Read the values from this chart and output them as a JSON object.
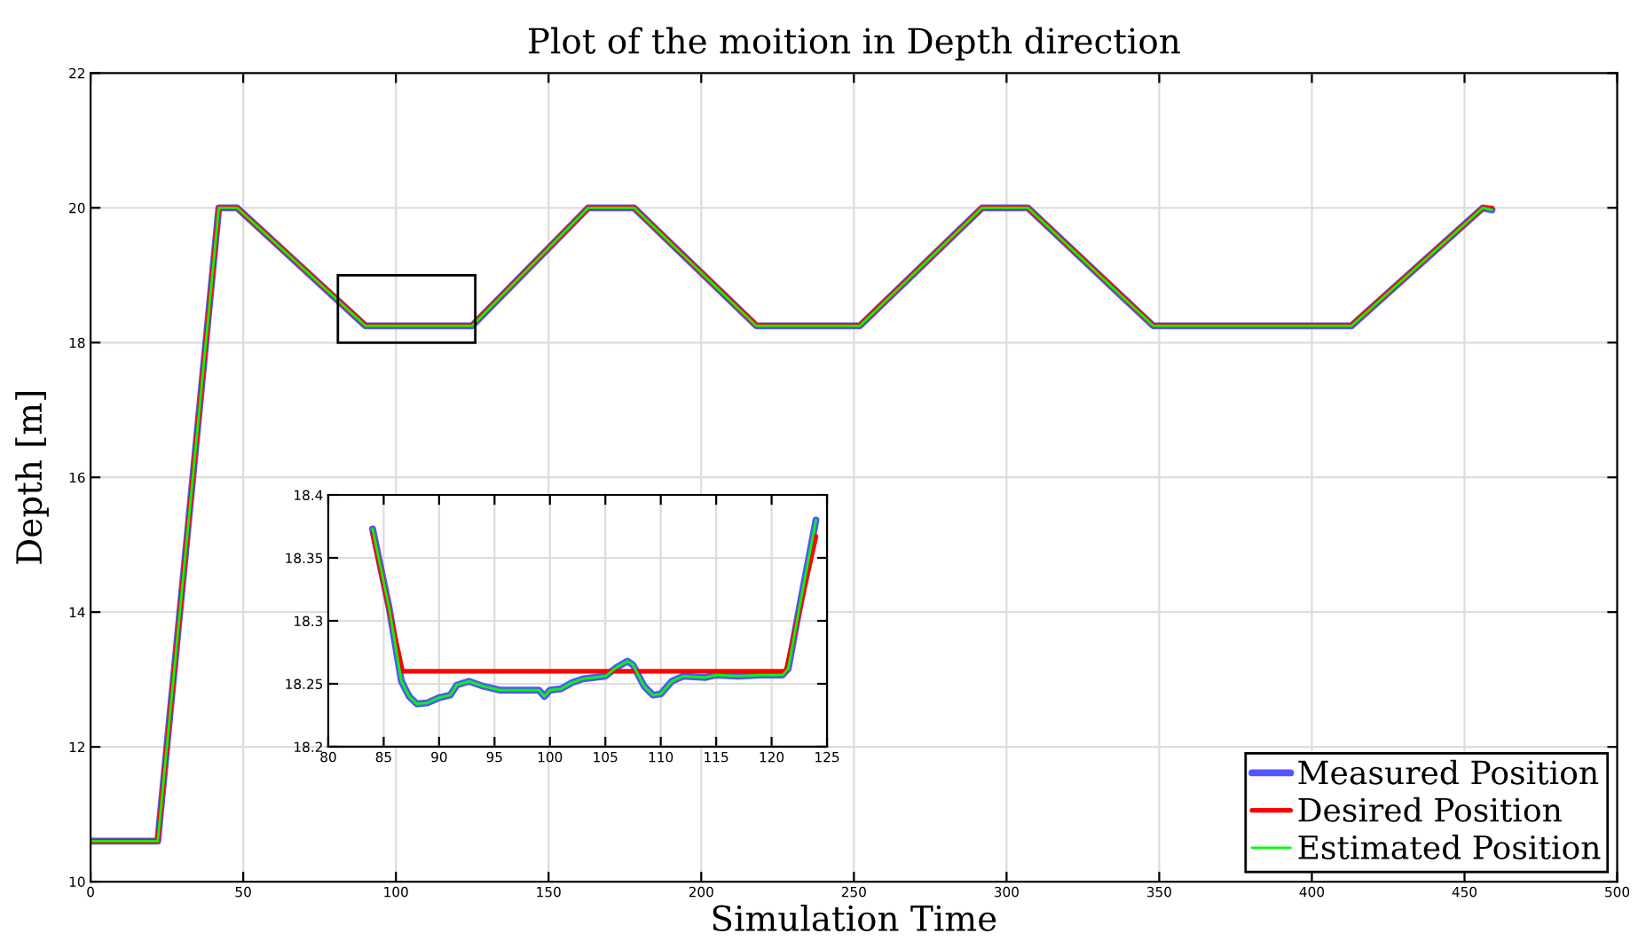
{
  "chart_data": [
    {
      "type": "line",
      "title": "Plot of the moition in Depth direction",
      "xlabel": "Simulation Time",
      "ylabel": "Depth [m]",
      "xlim": [
        0,
        500
      ],
      "ylim": [
        10,
        22
      ],
      "xticks": [
        0,
        50,
        100,
        150,
        200,
        250,
        300,
        350,
        400,
        450,
        500
      ],
      "yticks": [
        10,
        12,
        14,
        16,
        18,
        20,
        22
      ],
      "grid": true,
      "legend": "bottom right",
      "x": [
        0,
        22,
        42,
        48,
        90,
        125,
        163,
        178,
        218,
        252,
        292,
        307,
        348,
        413,
        456,
        459
      ],
      "series": [
        {
          "name": "Measured Position",
          "color": "#5555ff",
          "values": [
            10.6,
            10.6,
            20,
            20,
            18.25,
            18.25,
            20,
            20,
            18.25,
            18.25,
            20,
            20,
            18.25,
            18.25,
            20,
            19.97
          ]
        },
        {
          "name": "Desired Position",
          "color": "#ff0000",
          "values": [
            10.6,
            10.6,
            20,
            20,
            18.26,
            18.26,
            20,
            20,
            18.26,
            18.26,
            20,
            20,
            18.26,
            18.26,
            20,
            20
          ]
        },
        {
          "name": "Estimated Position",
          "color": "#00ff00",
          "values": [
            10.6,
            10.6,
            20,
            20,
            18.25,
            18.25,
            20,
            20,
            18.25,
            18.25,
            20,
            20,
            18.25,
            18.25,
            20,
            19.97
          ]
        }
      ]
    },
    {
      "type": "line",
      "xlim": [
        80,
        125
      ],
      "ylim": [
        18.2,
        18.4
      ],
      "xticks": [
        80,
        85,
        90,
        95,
        100,
        105,
        110,
        115,
        120,
        125
      ],
      "yticks": [
        18.2,
        18.25,
        18.3,
        18.35,
        18.4
      ],
      "grid": true,
      "series": [
        {
          "color": "#5555ff",
          "x": [
            84,
            85.5,
            86.6,
            87.3,
            88,
            89,
            90,
            91,
            91.6,
            92.7,
            94,
            95.5,
            97,
            99,
            99.5,
            100,
            101,
            102,
            103,
            104,
            105,
            106,
            107,
            107.5,
            108.5,
            109.3,
            110,
            111,
            112,
            114,
            115,
            117,
            119,
            121,
            121.5,
            122.5,
            124
          ],
          "values": [
            18.373,
            18.31,
            18.252,
            18.24,
            18.234,
            18.235,
            18.239,
            18.241,
            18.249,
            18.252,
            18.248,
            18.245,
            18.245,
            18.245,
            18.24,
            18.245,
            18.246,
            18.251,
            18.254,
            18.255,
            18.256,
            18.263,
            18.268,
            18.265,
            18.248,
            18.241,
            18.242,
            18.252,
            18.256,
            18.255,
            18.257,
            18.256,
            18.257,
            18.257,
            18.262,
            18.31,
            18.38
          ]
        },
        {
          "color": "#ff0000",
          "x": [
            84,
            86.7,
            121.3,
            124
          ],
          "values": [
            18.37,
            18.26,
            18.26,
            18.367
          ]
        },
        {
          "color": "#00ff00",
          "x": [
            84,
            85.5,
            86.6,
            87.3,
            88,
            89,
            90,
            91,
            91.6,
            92.7,
            94,
            95.5,
            97,
            99,
            99.5,
            100,
            101,
            102,
            103,
            104,
            105,
            106,
            107,
            107.5,
            108.5,
            109.3,
            110,
            111,
            112,
            114,
            115,
            117,
            119,
            121,
            121.5,
            122.5,
            124
          ],
          "values": [
            18.373,
            18.31,
            18.252,
            18.24,
            18.234,
            18.235,
            18.239,
            18.241,
            18.249,
            18.252,
            18.248,
            18.245,
            18.245,
            18.245,
            18.24,
            18.245,
            18.246,
            18.251,
            18.254,
            18.255,
            18.256,
            18.263,
            18.268,
            18.265,
            18.248,
            18.241,
            18.242,
            18.252,
            18.256,
            18.255,
            18.257,
            18.256,
            18.257,
            18.257,
            18.262,
            18.31,
            18.38
          ]
        }
      ]
    }
  ]
}
